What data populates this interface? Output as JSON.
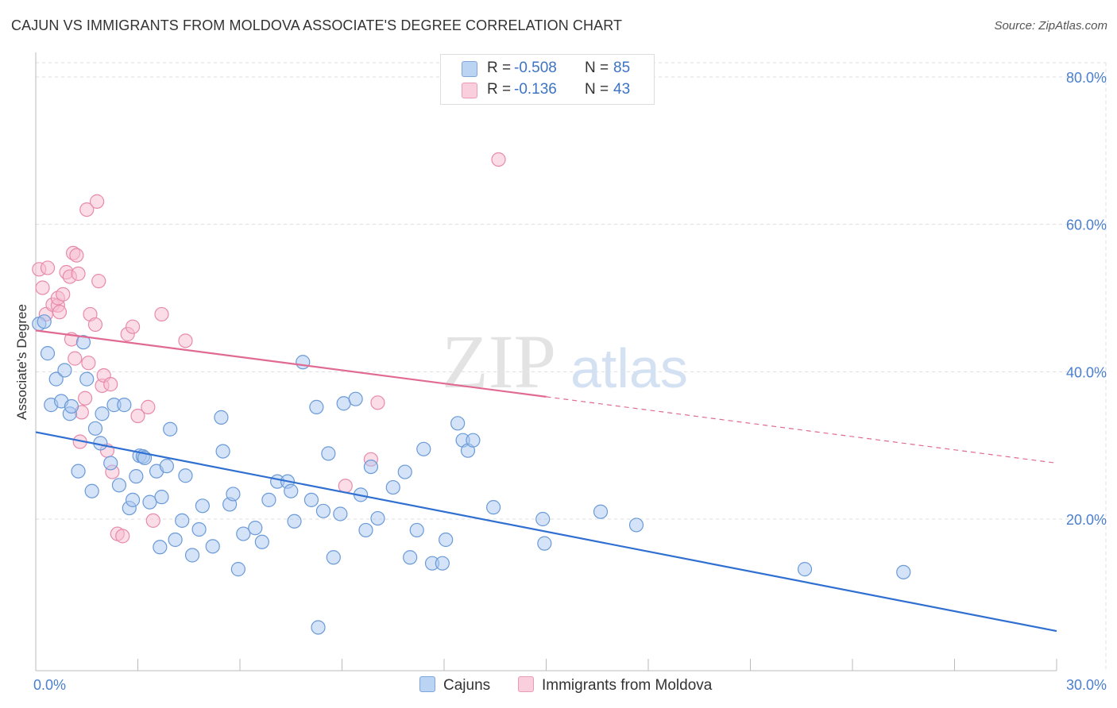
{
  "title": "CAJUN VS IMMIGRANTS FROM MOLDOVA ASSOCIATE'S DEGREE CORRELATION CHART",
  "source": "Source: ZipAtlas.com",
  "watermark": {
    "zip": "ZIP",
    "atlas": "atlas"
  },
  "legend": {
    "rows": [
      {
        "r_label": "R =",
        "r_value": "-0.508",
        "n_label": "N =",
        "n_value": "85"
      },
      {
        "r_label": "R =",
        "r_value": "-0.136",
        "n_label": "N =",
        "n_value": "43"
      }
    ]
  },
  "bottom_legend": {
    "cajuns": "Cajuns",
    "moldova": "Immigrants from Moldova"
  },
  "colors": {
    "cajun_fill": "#a9c7ef",
    "cajun_stroke": "#6a9ad8",
    "cajun_line": "#2f6fd1",
    "moldova_fill": "#f7bcd0",
    "moldova_stroke": "#e88aab",
    "moldova_line": "#e06a92",
    "grid": "#dddddd",
    "axis_text": "#4a7fcf"
  },
  "chart_data": {
    "type": "scatter",
    "title": "CAJUN VS IMMIGRANTS FROM MOLDOVA ASSOCIATE'S DEGREE CORRELATION CHART",
    "xlabel": "",
    "ylabel": "Associate's Degree",
    "xlim": [
      0,
      30
    ],
    "ylim": [
      0,
      82
    ],
    "x_ticks": [
      "0.0%",
      "30.0%"
    ],
    "y_ticks": [
      {
        "value": 20,
        "label": "20.0%"
      },
      {
        "value": 40,
        "label": "40.0%"
      },
      {
        "value": 60,
        "label": "60.0%"
      },
      {
        "value": 80,
        "label": "80.0%"
      }
    ],
    "grid": true,
    "legend_position": "top-center",
    "series": [
      {
        "name": "Cajuns",
        "points": [
          [
            0.1,
            46.5
          ],
          [
            0.35,
            42.5
          ],
          [
            0.45,
            35.5
          ],
          [
            0.6,
            39.0
          ],
          [
            0.75,
            36.0
          ],
          [
            0.85,
            40.2
          ],
          [
            1.0,
            34.3
          ],
          [
            1.05,
            35.3
          ],
          [
            1.25,
            26.5
          ],
          [
            1.4,
            44.0
          ],
          [
            1.5,
            39.0
          ],
          [
            1.65,
            23.8
          ],
          [
            1.75,
            32.3
          ],
          [
            1.9,
            30.3
          ],
          [
            1.95,
            34.3
          ],
          [
            2.2,
            27.6
          ],
          [
            2.3,
            35.5
          ],
          [
            2.45,
            24.6
          ],
          [
            2.6,
            35.5
          ],
          [
            2.75,
            21.5
          ],
          [
            2.85,
            22.6
          ],
          [
            2.95,
            25.8
          ],
          [
            3.05,
            28.6
          ],
          [
            3.15,
            28.5
          ],
          [
            3.35,
            22.3
          ],
          [
            3.55,
            26.5
          ],
          [
            3.65,
            16.2
          ],
          [
            3.7,
            23.0
          ],
          [
            3.85,
            27.2
          ],
          [
            3.95,
            32.2
          ],
          [
            4.1,
            17.2
          ],
          [
            4.3,
            19.8
          ],
          [
            4.4,
            25.9
          ],
          [
            4.6,
            15.1
          ],
          [
            4.8,
            18.6
          ],
          [
            4.9,
            21.8
          ],
          [
            5.2,
            16.3
          ],
          [
            5.45,
            33.8
          ],
          [
            5.5,
            29.2
          ],
          [
            5.7,
            22.0
          ],
          [
            5.8,
            23.4
          ],
          [
            5.95,
            13.2
          ],
          [
            6.1,
            18.0
          ],
          [
            6.45,
            18.8
          ],
          [
            6.65,
            16.9
          ],
          [
            6.85,
            22.6
          ],
          [
            7.1,
            25.1
          ],
          [
            7.4,
            25.1
          ],
          [
            7.5,
            23.8
          ],
          [
            7.6,
            19.7
          ],
          [
            7.85,
            41.3
          ],
          [
            8.1,
            22.6
          ],
          [
            8.25,
            35.2
          ],
          [
            8.3,
            5.3
          ],
          [
            8.45,
            21.1
          ],
          [
            8.6,
            28.9
          ],
          [
            8.75,
            14.8
          ],
          [
            8.95,
            20.7
          ],
          [
            9.05,
            35.7
          ],
          [
            9.4,
            36.3
          ],
          [
            9.55,
            23.3
          ],
          [
            9.7,
            18.5
          ],
          [
            9.85,
            27.1
          ],
          [
            10.05,
            20.1
          ],
          [
            10.5,
            24.3
          ],
          [
            10.85,
            26.4
          ],
          [
            11.0,
            14.8
          ],
          [
            11.2,
            18.5
          ],
          [
            11.4,
            29.5
          ],
          [
            11.65,
            14.0
          ],
          [
            11.95,
            14.0
          ],
          [
            12.05,
            17.2
          ],
          [
            12.4,
            33.0
          ],
          [
            12.55,
            30.7
          ],
          [
            12.7,
            29.3
          ],
          [
            12.85,
            30.7
          ],
          [
            13.45,
            21.6
          ],
          [
            14.9,
            20.0
          ],
          [
            14.95,
            16.7
          ],
          [
            16.6,
            21.0
          ],
          [
            17.65,
            19.2
          ],
          [
            22.6,
            13.2
          ],
          [
            25.5,
            12.8
          ],
          [
            0.25,
            46.8
          ],
          [
            3.2,
            28.3
          ]
        ],
        "trend": {
          "x": [
            0,
            30
          ],
          "y": [
            31.8,
            4.8
          ],
          "solid_to": 30
        }
      },
      {
        "name": "Immigrants from Moldova",
        "points": [
          [
            0.1,
            53.9
          ],
          [
            0.2,
            51.4
          ],
          [
            0.3,
            47.8
          ],
          [
            0.35,
            54.1
          ],
          [
            0.5,
            49.1
          ],
          [
            0.65,
            49.0
          ],
          [
            0.65,
            50.0
          ],
          [
            0.7,
            48.1
          ],
          [
            0.8,
            50.5
          ],
          [
            0.9,
            53.5
          ],
          [
            1.0,
            52.9
          ],
          [
            1.05,
            44.4
          ],
          [
            1.1,
            56.1
          ],
          [
            1.2,
            55.8
          ],
          [
            1.25,
            53.3
          ],
          [
            1.35,
            34.5
          ],
          [
            1.45,
            36.4
          ],
          [
            1.5,
            62.0
          ],
          [
            1.55,
            41.2
          ],
          [
            1.6,
            47.8
          ],
          [
            1.75,
            46.4
          ],
          [
            1.8,
            63.1
          ],
          [
            1.85,
            52.3
          ],
          [
            1.95,
            38.1
          ],
          [
            2.0,
            39.5
          ],
          [
            2.1,
            29.3
          ],
          [
            2.2,
            38.3
          ],
          [
            2.25,
            26.4
          ],
          [
            2.4,
            18.0
          ],
          [
            2.55,
            17.7
          ],
          [
            2.7,
            45.1
          ],
          [
            2.85,
            46.1
          ],
          [
            3.0,
            34.0
          ],
          [
            3.3,
            35.2
          ],
          [
            3.45,
            19.8
          ],
          [
            3.7,
            47.8
          ],
          [
            4.4,
            44.2
          ],
          [
            9.1,
            24.5
          ],
          [
            9.85,
            28.1
          ],
          [
            10.05,
            35.8
          ],
          [
            13.6,
            68.8
          ],
          [
            1.15,
            41.8
          ],
          [
            1.3,
            30.5
          ]
        ],
        "trend": {
          "x": [
            0,
            30
          ],
          "y": [
            45.6,
            27.6
          ],
          "solid_to": 15
        }
      }
    ]
  }
}
